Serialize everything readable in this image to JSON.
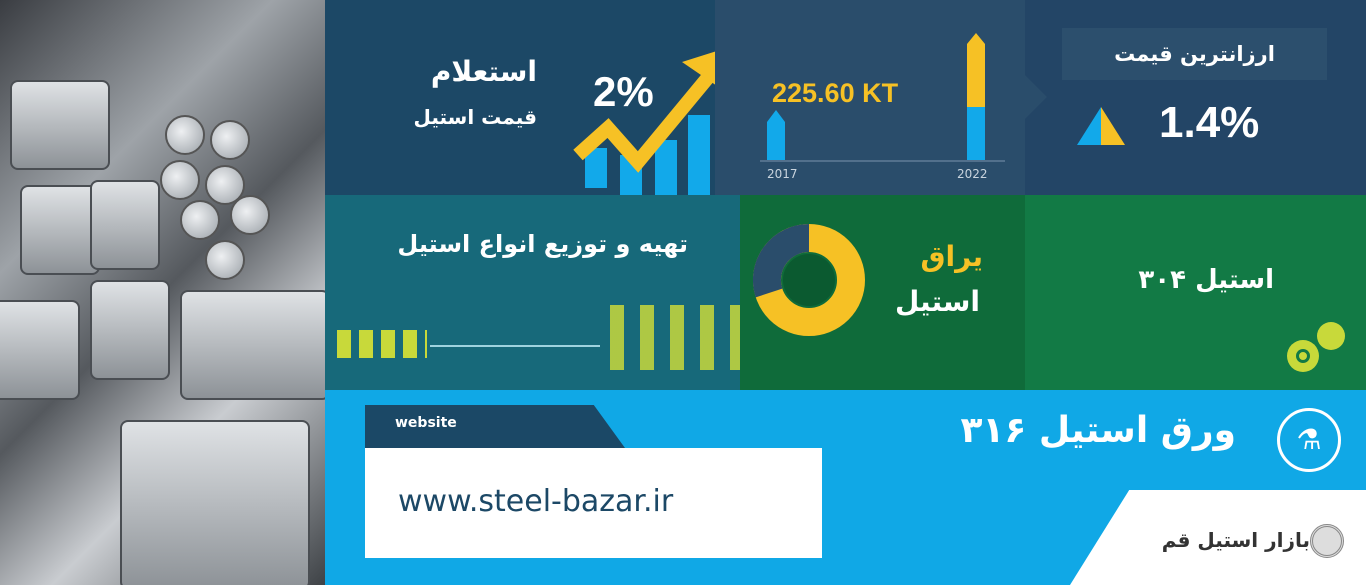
{
  "inquiry": {
    "title": "استعلام",
    "subtitle": "قیمت استیل",
    "percent": "2%"
  },
  "growth": {
    "value": "225.60 KT",
    "year_start": "2017",
    "year_end": "2022"
  },
  "cheapest": {
    "label": "ارزانترین قیمت",
    "percent": "1.4%"
  },
  "supply": {
    "title": "تهیه و توزیع انواع استیل"
  },
  "fittings": {
    "line1": "یراق",
    "line2": "استیل"
  },
  "steel304": {
    "title": "استیل ۳۰۴"
  },
  "sheet316": {
    "title": "ورق استیل ۳۱۶"
  },
  "website": {
    "tab_label": "website",
    "url": "www.steel-bazar.ir"
  },
  "brand": {
    "name": "بازار استیل قم"
  },
  "colors": {
    "yellow": "#f6c125",
    "blue": "#12a9ea",
    "navy": "#1c4866",
    "green": "#127a45",
    "cyan": "#10a8e6"
  }
}
